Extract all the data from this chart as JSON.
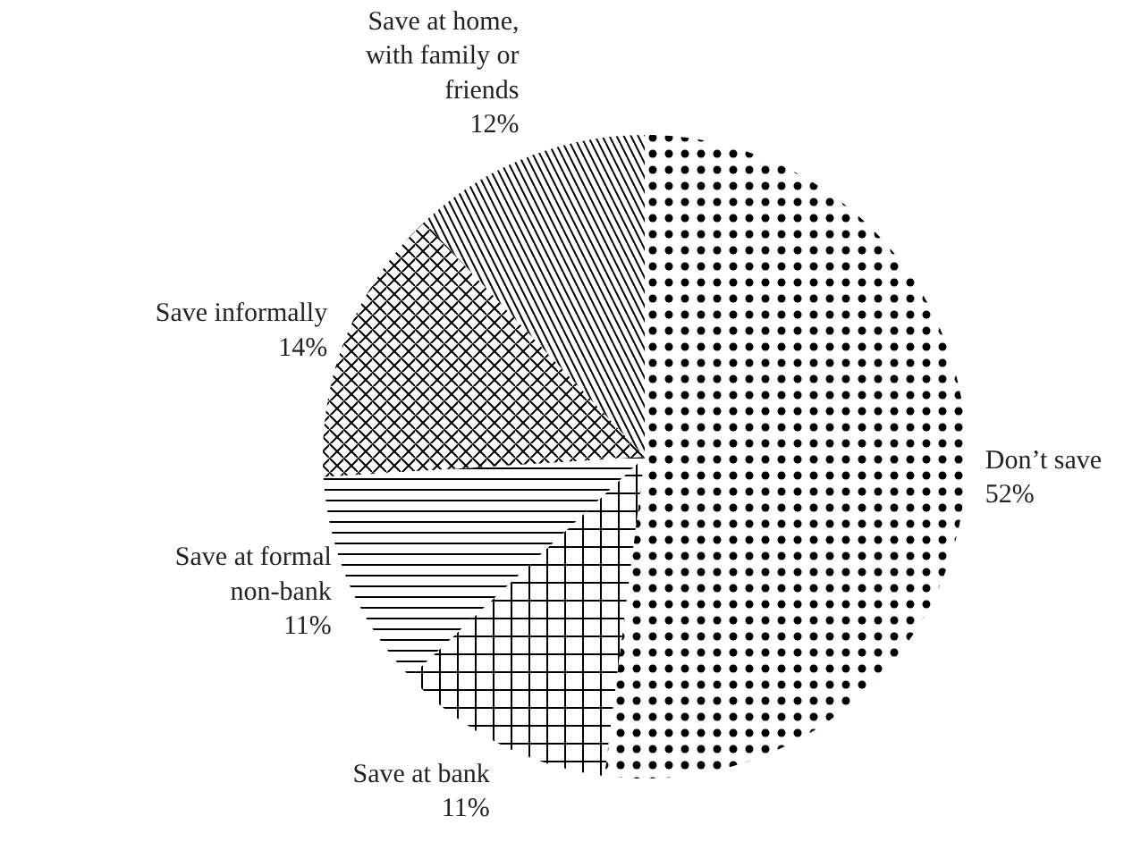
{
  "chart_data": {
    "type": "pie",
    "categories": [
      "Don’t save",
      "Save at bank",
      "Save at formal non-bank",
      "Save informally",
      "Save at home, with family or friends"
    ],
    "values": [
      52,
      11,
      11,
      14,
      12
    ],
    "value_labels": [
      "52%",
      "11%",
      "11%",
      "14%",
      "12%"
    ],
    "colors": [
      "#ffffff",
      "#ffffff",
      "#ffffff",
      "#ffffff",
      "#ffffff"
    ]
  }
}
